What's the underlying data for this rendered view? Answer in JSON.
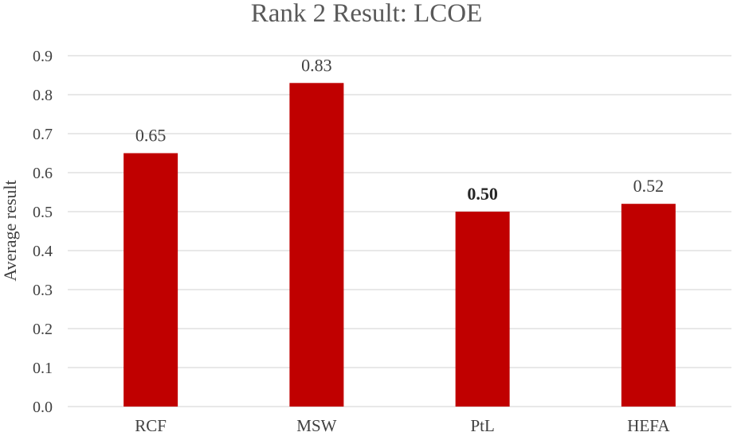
{
  "chart_data": {
    "type": "bar",
    "title": "Rank 2 Result: LCOE",
    "xlabel": "",
    "ylabel": "Average result",
    "categories": [
      "RCF",
      "MSW",
      "PtL",
      "HEFA"
    ],
    "values": [
      0.65,
      0.83,
      0.5,
      0.52
    ],
    "data_labels": [
      "0.65",
      "0.83",
      "0.50",
      "0.52"
    ],
    "bold_labels": [
      false,
      false,
      true,
      false
    ],
    "ylim": [
      0.0,
      0.9
    ],
    "yticks": [
      "0.0",
      "0.1",
      "0.2",
      "0.3",
      "0.4",
      "0.5",
      "0.6",
      "0.7",
      "0.8",
      "0.9"
    ],
    "grid": true,
    "legend": "none",
    "bar_color": "#c00000"
  }
}
